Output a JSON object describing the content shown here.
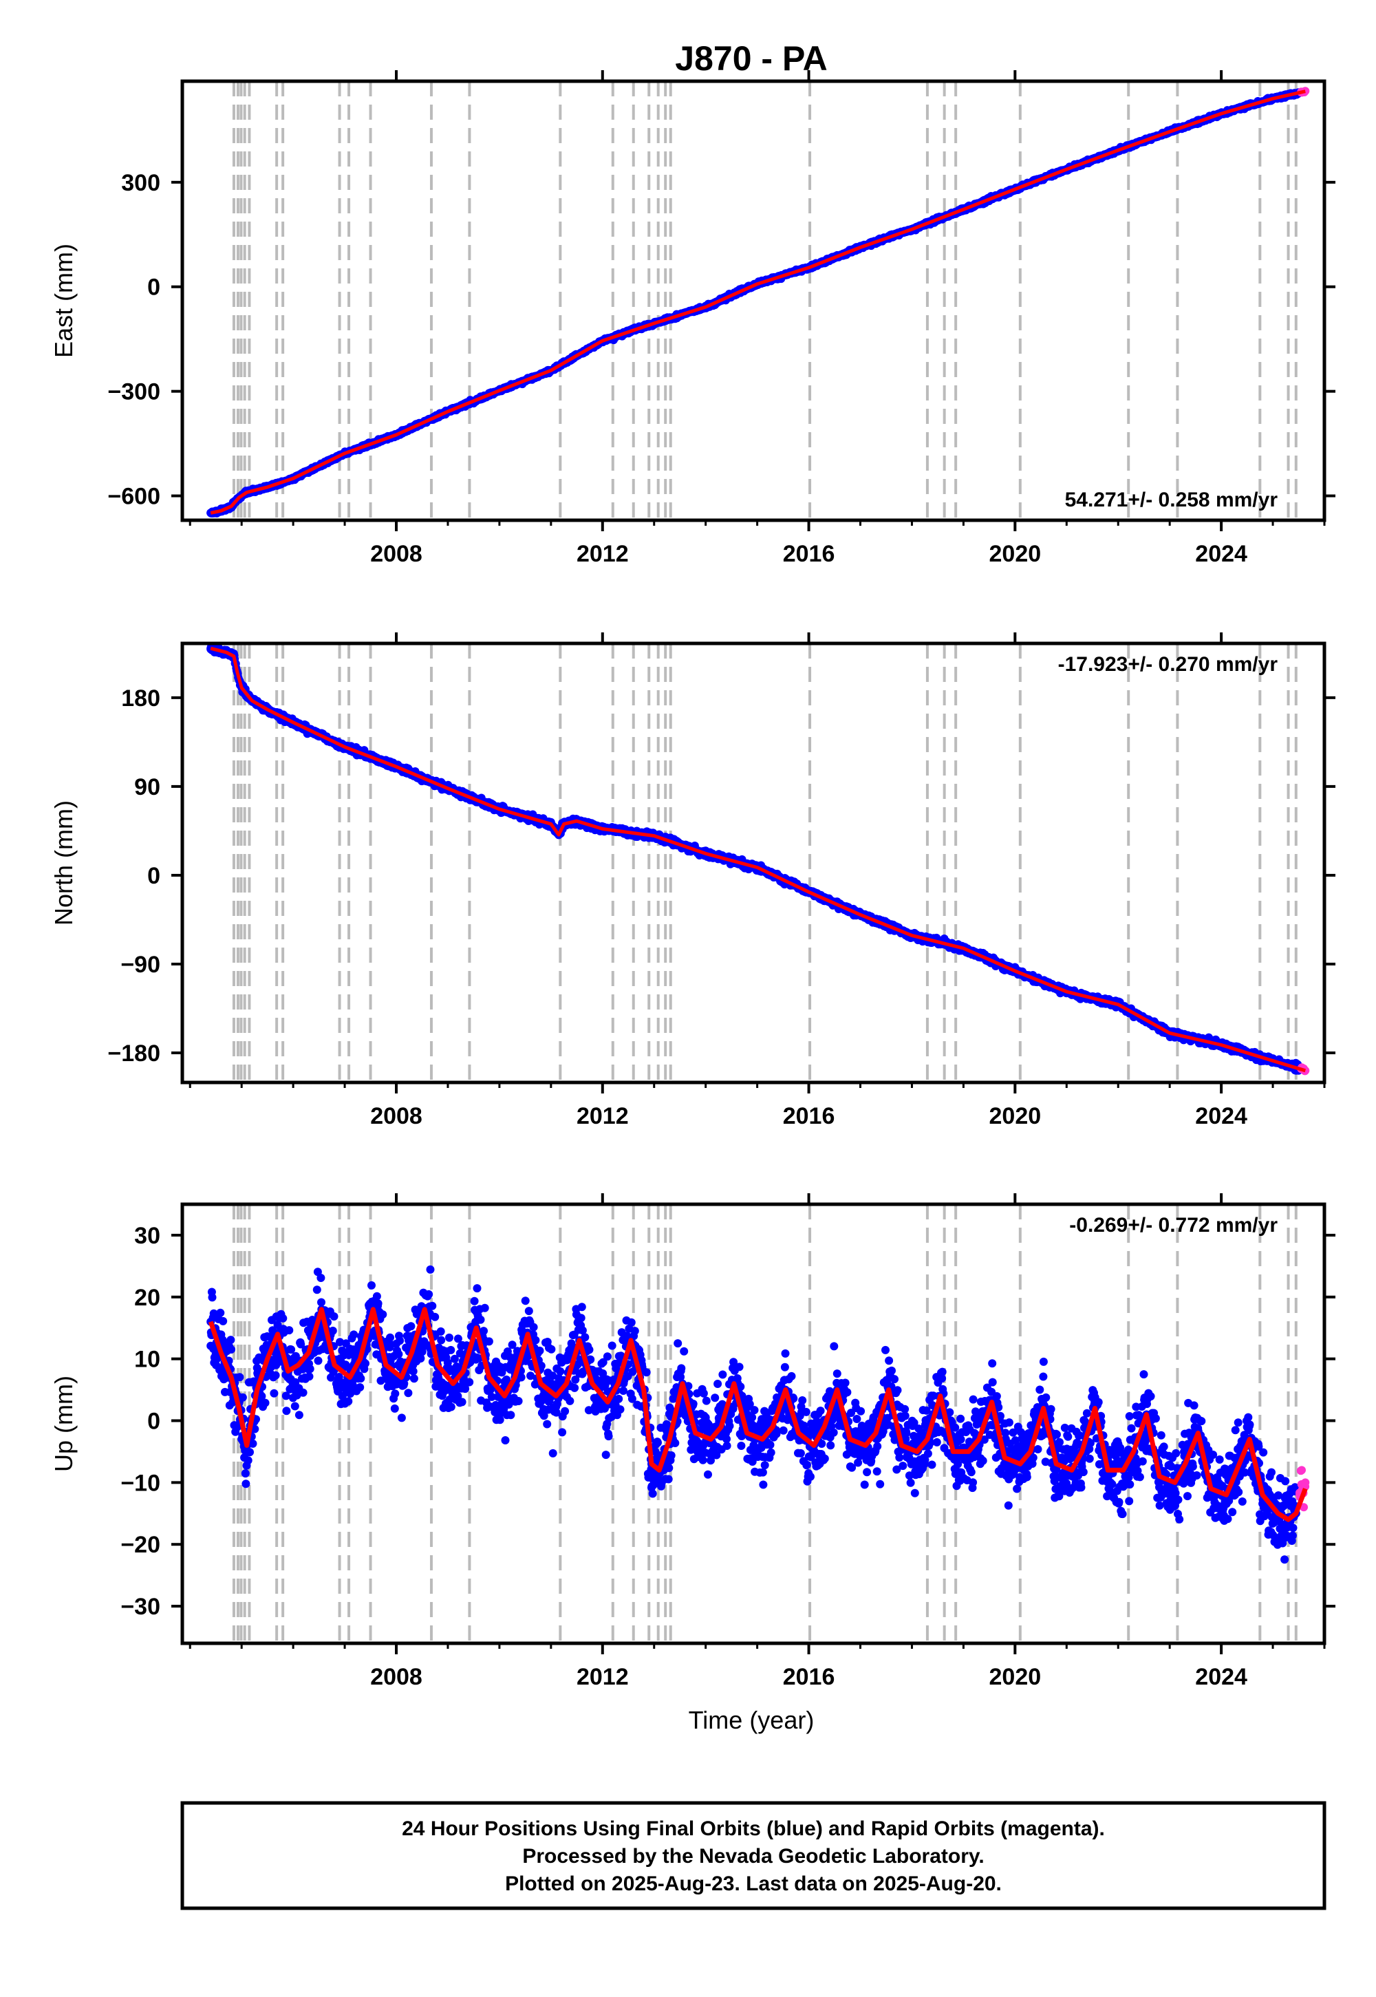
{
  "title": "J870 - PA",
  "colors": {
    "final": "#0000ff",
    "rapid": "#ff33cc",
    "model": "#ff0000",
    "event_line": "#bbbbbb",
    "frame": "#000000"
  },
  "event_years": [
    2004.85,
    2004.93,
    2004.99,
    2005.06,
    2005.15,
    2005.68,
    2005.8,
    2006.9,
    2007.08,
    2007.5,
    2008.68,
    2009.42,
    2011.18,
    2012.2,
    2012.6,
    2012.9,
    2013.08,
    2013.22,
    2013.32,
    2016.02,
    2018.3,
    2018.63,
    2018.85,
    2020.1,
    2022.2,
    2023.15,
    2024.75,
    2025.3,
    2025.45
  ],
  "caption": {
    "lines": [
      "24 Hour Positions Using Final Orbits (blue) and Rapid Orbits (magenta).",
      "Processed by the Nevada Geodetic Laboratory.",
      "Plotted on 2025-Aug-23. Last data on 2025-Aug-20."
    ]
  },
  "chart_data": [
    {
      "type": "scatter",
      "panel": "east",
      "title": "J870 - PA",
      "xlabel": "",
      "ylabel": "East (mm)",
      "xlim": [
        2003.85,
        2026.0
      ],
      "ylim": [
        -670,
        590
      ],
      "x_ticks": [
        2008,
        2012,
        2016,
        2020,
        2024
      ],
      "x_tick_labels": [
        "2008",
        "2012",
        "2016",
        "2020",
        "2024"
      ],
      "y_ticks": [
        -600,
        -300,
        0,
        300
      ],
      "y_tick_labels": [
        "−600",
        "−300",
        "0",
        "300"
      ],
      "rate_label": "54.271+/- 0.258 mm/yr",
      "rate_position": "bottom-right",
      "series": [
        {
          "role": "final",
          "color": "#0000ff",
          "x": [
            2004.4,
            2004.6,
            2004.8,
            2004.95,
            2005.1,
            2005.5,
            2006,
            2007,
            2008,
            2009,
            2010,
            2011,
            2012,
            2013,
            2014,
            2015,
            2016,
            2017,
            2018,
            2019,
            2020,
            2021,
            2022,
            2023,
            2024,
            2025,
            2025.5
          ],
          "y": [
            -649,
            -643,
            -630,
            -605,
            -590,
            -575,
            -550,
            -478,
            -425,
            -358,
            -298,
            -240,
            -155,
            -105,
            -58,
            8,
            55,
            113,
            165,
            222,
            280,
            337,
            392,
            445,
            497,
            540,
            555
          ]
        },
        {
          "role": "rapid",
          "color": "#ff33cc",
          "x": [
            2025.55,
            2025.6,
            2025.63
          ],
          "y": [
            558,
            560,
            562
          ]
        }
      ],
      "fit_line": {
        "role": "model",
        "color": "#ff0000",
        "x": [
          2004.4,
          2004.6,
          2004.8,
          2004.95,
          2005.1,
          2005.5,
          2006,
          2007,
          2008,
          2009,
          2010,
          2011,
          2012,
          2013,
          2014,
          2015,
          2016,
          2017,
          2018,
          2019,
          2020,
          2021,
          2022,
          2023,
          2024,
          2025,
          2025.63
        ],
        "y": [
          -649,
          -643,
          -630,
          -605,
          -590,
          -575,
          -550,
          -478,
          -425,
          -358,
          -298,
          -240,
          -155,
          -105,
          -58,
          8,
          55,
          113,
          165,
          222,
          280,
          337,
          392,
          445,
          497,
          540,
          561
        ]
      }
    },
    {
      "type": "scatter",
      "panel": "north",
      "xlabel": "",
      "ylabel": "North (mm)",
      "xlim": [
        2003.85,
        2026.0
      ],
      "ylim": [
        -210,
        235
      ],
      "x_ticks": [
        2008,
        2012,
        2016,
        2020,
        2024
      ],
      "x_tick_labels": [
        "2008",
        "2012",
        "2016",
        "2020",
        "2024"
      ],
      "y_ticks": [
        -180,
        -90,
        0,
        90,
        180
      ],
      "y_tick_labels": [
        "−180",
        "−90",
        "0",
        "90",
        "180"
      ],
      "rate_label": "-17.923+/- 0.270 mm/yr",
      "rate_position": "top-right",
      "series": [
        {
          "role": "final",
          "color": "#0000ff",
          "x": [
            2004.4,
            2004.7,
            2004.85,
            2004.92,
            2005.0,
            2005.2,
            2005.5,
            2006,
            2007,
            2008,
            2009,
            2010,
            2011,
            2011.15,
            2011.25,
            2011.5,
            2012,
            2013,
            2014,
            2015,
            2016,
            2017,
            2018,
            2019,
            2020,
            2021,
            2022,
            2023,
            2024,
            2025,
            2025.5
          ],
          "y": [
            230,
            226,
            222,
            205,
            190,
            177,
            168,
            155,
            130,
            110,
            88,
            67,
            52,
            41,
            52,
            55,
            47,
            40,
            22,
            8,
            -17,
            -40,
            -61,
            -74,
            -97,
            -118,
            -131,
            -160,
            -172,
            -188,
            -195
          ]
        },
        {
          "role": "rapid",
          "color": "#ff33cc",
          "x": [
            2025.55,
            2025.6,
            2025.63
          ],
          "y": [
            -196,
            -197,
            -198
          ]
        }
      ],
      "fit_line": {
        "role": "model",
        "color": "#ff0000",
        "x": [
          2004.4,
          2004.7,
          2004.85,
          2004.92,
          2005.0,
          2005.2,
          2005.5,
          2006,
          2007,
          2008,
          2009,
          2010,
          2011,
          2011.15,
          2011.25,
          2011.5,
          2012,
          2013,
          2014,
          2015,
          2016,
          2017,
          2018,
          2019,
          2020,
          2021,
          2022,
          2023,
          2024,
          2025,
          2025.63
        ],
        "y": [
          230,
          226,
          222,
          205,
          190,
          177,
          168,
          155,
          130,
          110,
          88,
          67,
          52,
          41,
          52,
          55,
          47,
          40,
          22,
          8,
          -17,
          -40,
          -61,
          -74,
          -97,
          -118,
          -131,
          -160,
          -172,
          -188,
          -198
        ]
      }
    },
    {
      "type": "scatter",
      "panel": "up",
      "xlabel": "Time (year)",
      "ylabel": "Up (mm)",
      "xlim": [
        2003.85,
        2026.0
      ],
      "ylim": [
        -36,
        35
      ],
      "x_ticks": [
        2008,
        2012,
        2016,
        2020,
        2024
      ],
      "x_tick_labels": [
        "2008",
        "2012",
        "2016",
        "2020",
        "2024"
      ],
      "y_ticks": [
        -30,
        -20,
        -10,
        0,
        10,
        20,
        30
      ],
      "y_tick_labels": [
        "−30",
        "−20",
        "−10",
        "0",
        "10",
        "20",
        "30"
      ],
      "rate_label": "-0.269+/- 0.772 mm/yr",
      "rate_position": "top-right",
      "series": [
        {
          "role": "final",
          "color": "#0000ff",
          "x": [
            2004.4,
            2004.6,
            2004.8,
            2004.95,
            2005.1,
            2005.3,
            2005.5,
            2005.7,
            2005.9,
            2006.1,
            2006.3,
            2006.55,
            2006.8,
            2007.1,
            2007.3,
            2007.55,
            2007.8,
            2008.1,
            2008.3,
            2008.55,
            2008.8,
            2009.1,
            2009.3,
            2009.55,
            2009.8,
            2010.1,
            2010.3,
            2010.55,
            2010.8,
            2011.1,
            2011.3,
            2011.55,
            2011.8,
            2012.1,
            2012.3,
            2012.55,
            2012.8,
            2012.95,
            2013.1,
            2013.3,
            2013.55,
            2013.8,
            2014.1,
            2014.3,
            2014.55,
            2014.8,
            2015.1,
            2015.3,
            2015.55,
            2015.8,
            2016.1,
            2016.3,
            2016.55,
            2016.8,
            2017.1,
            2017.3,
            2017.55,
            2017.8,
            2018.1,
            2018.3,
            2018.55,
            2018.8,
            2019.1,
            2019.3,
            2019.55,
            2019.8,
            2020.1,
            2020.3,
            2020.55,
            2020.8,
            2021.1,
            2021.3,
            2021.55,
            2021.8,
            2022.1,
            2022.3,
            2022.55,
            2022.8,
            2023.1,
            2023.3,
            2023.55,
            2023.8,
            2024.1,
            2024.3,
            2024.55,
            2024.8,
            2025.1,
            2025.3,
            2025.45
          ],
          "y": [
            16,
            11,
            7,
            2,
            -4,
            5,
            10,
            14,
            8,
            9,
            11,
            18,
            9,
            7,
            10,
            18,
            9,
            7,
            11,
            18,
            9,
            6,
            8,
            15,
            7,
            4,
            7,
            14,
            6,
            4,
            6,
            13,
            6,
            3,
            6,
            13,
            5,
            -7,
            -8,
            -3,
            6,
            -2,
            -3,
            -1,
            6,
            -2,
            -3,
            -1,
            5,
            -2,
            -4,
            -1,
            5,
            -3,
            -4,
            -2,
            5,
            -4,
            -5,
            -3,
            4,
            -5,
            -5,
            -3,
            3,
            -6,
            -7,
            -5,
            2,
            -7,
            -8,
            -5,
            2,
            -8,
            -8,
            -5,
            1,
            -9,
            -10,
            -7,
            -2,
            -11,
            -12,
            -8,
            -3,
            -12,
            -15,
            -16,
            -15
          ]
        },
        {
          "role": "rapid",
          "color": "#ff33cc",
          "x": [
            2025.52,
            2025.56,
            2025.6,
            2025.63
          ],
          "y": [
            -12,
            -8,
            -14,
            -10
          ]
        }
      ],
      "fit_line": {
        "role": "model",
        "color": "#ff0000",
        "x": [
          2004.4,
          2004.6,
          2004.8,
          2004.95,
          2005.1,
          2005.3,
          2005.5,
          2005.7,
          2005.9,
          2006.1,
          2006.3,
          2006.55,
          2006.8,
          2007.1,
          2007.3,
          2007.55,
          2007.8,
          2008.1,
          2008.3,
          2008.55,
          2008.8,
          2009.1,
          2009.3,
          2009.55,
          2009.8,
          2010.1,
          2010.3,
          2010.55,
          2010.8,
          2011.1,
          2011.3,
          2011.55,
          2011.8,
          2012.1,
          2012.3,
          2012.55,
          2012.8,
          2012.95,
          2013.1,
          2013.3,
          2013.55,
          2013.8,
          2014.1,
          2014.3,
          2014.55,
          2014.8,
          2015.1,
          2015.3,
          2015.55,
          2015.8,
          2016.1,
          2016.3,
          2016.55,
          2016.8,
          2017.1,
          2017.3,
          2017.55,
          2017.8,
          2018.1,
          2018.3,
          2018.55,
          2018.8,
          2019.1,
          2019.3,
          2019.55,
          2019.8,
          2020.1,
          2020.3,
          2020.55,
          2020.8,
          2021.1,
          2021.3,
          2021.55,
          2021.8,
          2022.1,
          2022.3,
          2022.55,
          2022.8,
          2023.1,
          2023.3,
          2023.55,
          2023.8,
          2024.1,
          2024.3,
          2024.55,
          2024.8,
          2025.1,
          2025.3,
          2025.45,
          2025.63
        ],
        "y": [
          16,
          11,
          7,
          2,
          -4,
          5,
          10,
          14,
          8,
          9,
          11,
          18,
          9,
          7,
          10,
          18,
          9,
          7,
          11,
          18,
          9,
          6,
          8,
          15,
          7,
          4,
          7,
          14,
          6,
          4,
          6,
          13,
          6,
          3,
          6,
          13,
          5,
          -7,
          -8,
          -3,
          6,
          -2,
          -3,
          -1,
          6,
          -2,
          -3,
          -1,
          5,
          -2,
          -4,
          -1,
          5,
          -3,
          -4,
          -2,
          5,
          -4,
          -5,
          -3,
          4,
          -5,
          -5,
          -3,
          3,
          -6,
          -7,
          -5,
          2,
          -7,
          -8,
          -5,
          2,
          -8,
          -8,
          -5,
          1,
          -9,
          -10,
          -7,
          -2,
          -11,
          -12,
          -8,
          -3,
          -12,
          -15,
          -16,
          -15,
          -11
        ]
      }
    }
  ]
}
